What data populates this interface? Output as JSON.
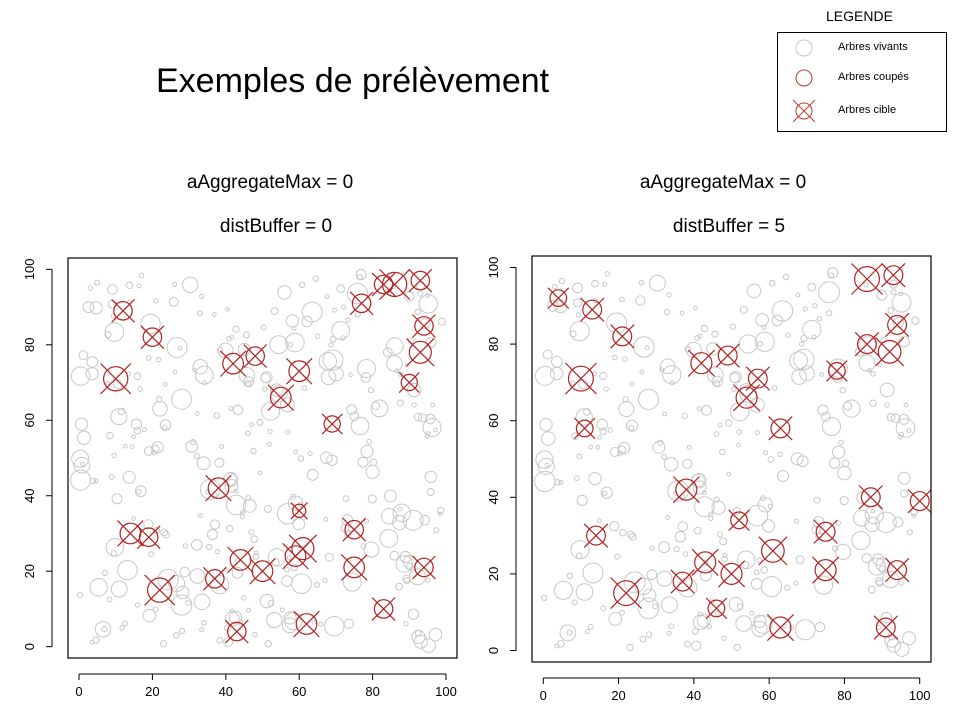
{
  "title": "Exemples de prélèvement",
  "legend": {
    "heading": "LEGENDE",
    "items": [
      {
        "label": "Arbres vivants",
        "symbol": "circle",
        "color": "#c8c8c8"
      },
      {
        "label": "Arbres coupés",
        "symbol": "circle",
        "color": "#c0392b"
      },
      {
        "label": "Arbres cible",
        "symbol": "circle-x",
        "color": "#c0392b"
      }
    ]
  },
  "colors": {
    "live": "#c8c8c8",
    "cut": "#b22222",
    "axis": "#000000"
  },
  "chart_data": [
    {
      "type": "scatter",
      "title_line1": "aAggregateMax = 0",
      "title_line2": "distBuffer = 0",
      "xlim": [
        -3,
        103
      ],
      "ylim": [
        -3,
        103
      ],
      "xticks": [
        "0",
        "20",
        "40",
        "60",
        "80",
        "100"
      ],
      "yticks": [
        "0",
        "20",
        "40",
        "60",
        "80",
        "100"
      ],
      "target_trees": [
        {
          "x": 12,
          "y": 89,
          "s": 2.5
        },
        {
          "x": 20,
          "y": 82,
          "s": 2.5
        },
        {
          "x": 10,
          "y": 71,
          "s": 3.3
        },
        {
          "x": 42,
          "y": 75,
          "s": 2.8
        },
        {
          "x": 48,
          "y": 77,
          "s": 2.5
        },
        {
          "x": 60,
          "y": 73,
          "s": 2.8
        },
        {
          "x": 55,
          "y": 66,
          "s": 2.8
        },
        {
          "x": 69,
          "y": 59,
          "s": 2.2
        },
        {
          "x": 77,
          "y": 91,
          "s": 2.5
        },
        {
          "x": 83,
          "y": 96,
          "s": 2.5
        },
        {
          "x": 86,
          "y": 96,
          "s": 3.3
        },
        {
          "x": 93,
          "y": 97,
          "s": 2.5
        },
        {
          "x": 94,
          "y": 85,
          "s": 2.5
        },
        {
          "x": 93,
          "y": 78,
          "s": 3.0
        },
        {
          "x": 90,
          "y": 70,
          "s": 2.2
        },
        {
          "x": 38,
          "y": 42,
          "s": 2.8
        },
        {
          "x": 60,
          "y": 36,
          "s": 1.8
        },
        {
          "x": 75,
          "y": 31,
          "s": 2.5
        },
        {
          "x": 14,
          "y": 30,
          "s": 2.8
        },
        {
          "x": 19,
          "y": 29,
          "s": 2.5
        },
        {
          "x": 22,
          "y": 15,
          "s": 3.3
        },
        {
          "x": 37,
          "y": 18,
          "s": 2.5
        },
        {
          "x": 44,
          "y": 23,
          "s": 2.8
        },
        {
          "x": 50,
          "y": 20,
          "s": 2.8
        },
        {
          "x": 59,
          "y": 24,
          "s": 2.8
        },
        {
          "x": 61,
          "y": 26,
          "s": 3.0
        },
        {
          "x": 75,
          "y": 21,
          "s": 2.8
        },
        {
          "x": 94,
          "y": 21,
          "s": 2.5
        },
        {
          "x": 43,
          "y": 4,
          "s": 2.5
        },
        {
          "x": 62,
          "y": 6,
          "s": 2.8
        },
        {
          "x": 83,
          "y": 10,
          "s": 2.5
        }
      ]
    },
    {
      "type": "scatter",
      "title_line1": "aAggregateMax = 0",
      "title_line2": "distBuffer = 5",
      "xlim": [
        -3,
        103
      ],
      "ylim": [
        -3,
        103
      ],
      "xticks": [
        "0",
        "20",
        "40",
        "60",
        "80",
        "100"
      ],
      "yticks": [
        "0",
        "20",
        "40",
        "60",
        "80",
        "100"
      ],
      "target_trees": [
        {
          "x": 4,
          "y": 92,
          "s": 2.2
        },
        {
          "x": 13,
          "y": 89,
          "s": 2.5
        },
        {
          "x": 21,
          "y": 82,
          "s": 2.5
        },
        {
          "x": 10,
          "y": 71,
          "s": 3.3
        },
        {
          "x": 11,
          "y": 58,
          "s": 2.2
        },
        {
          "x": 42,
          "y": 75,
          "s": 2.8
        },
        {
          "x": 49,
          "y": 77,
          "s": 2.5
        },
        {
          "x": 57,
          "y": 71,
          "s": 2.5
        },
        {
          "x": 54,
          "y": 66,
          "s": 2.8
        },
        {
          "x": 63,
          "y": 58,
          "s": 2.5
        },
        {
          "x": 78,
          "y": 73,
          "s": 2.2
        },
        {
          "x": 86,
          "y": 97,
          "s": 3.3
        },
        {
          "x": 93,
          "y": 98,
          "s": 2.5
        },
        {
          "x": 94,
          "y": 85,
          "s": 2.5
        },
        {
          "x": 86,
          "y": 80,
          "s": 2.5
        },
        {
          "x": 92,
          "y": 78,
          "s": 3.0
        },
        {
          "x": 38,
          "y": 42,
          "s": 2.8
        },
        {
          "x": 87,
          "y": 40,
          "s": 2.5
        },
        {
          "x": 100,
          "y": 39,
          "s": 2.5
        },
        {
          "x": 52,
          "y": 34,
          "s": 2.2
        },
        {
          "x": 75,
          "y": 31,
          "s": 2.5
        },
        {
          "x": 14,
          "y": 30,
          "s": 2.5
        },
        {
          "x": 61,
          "y": 26,
          "s": 3.0
        },
        {
          "x": 43,
          "y": 23,
          "s": 2.8
        },
        {
          "x": 50,
          "y": 20,
          "s": 2.8
        },
        {
          "x": 37,
          "y": 18,
          "s": 2.5
        },
        {
          "x": 75,
          "y": 21,
          "s": 2.8
        },
        {
          "x": 94,
          "y": 21,
          "s": 2.5
        },
        {
          "x": 22,
          "y": 15,
          "s": 3.3
        },
        {
          "x": 46,
          "y": 11,
          "s": 2.2
        },
        {
          "x": 63,
          "y": 6,
          "s": 2.8
        },
        {
          "x": 91,
          "y": 6,
          "s": 2.5
        }
      ]
    }
  ]
}
